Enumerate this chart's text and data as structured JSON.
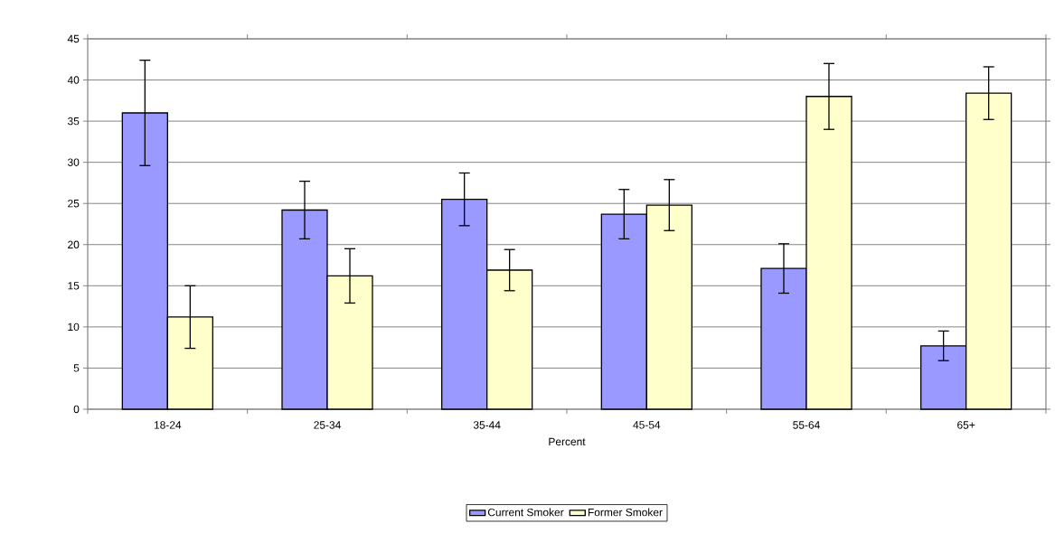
{
  "chart_data": {
    "type": "bar",
    "xlabel": "Percent",
    "categories": [
      "18-24",
      "25-34",
      "35-44",
      "45-54",
      "55-64",
      "65+"
    ],
    "series": [
      {
        "name": "Current Smoker",
        "color": "#9999ff",
        "values": [
          36.0,
          24.2,
          25.5,
          23.7,
          17.1,
          7.7
        ],
        "errors": [
          6.4,
          3.5,
          3.2,
          3.0,
          3.0,
          1.8
        ]
      },
      {
        "name": "Former Smoker",
        "color": "#ffffcc",
        "values": [
          11.2,
          16.2,
          16.9,
          24.8,
          38.0,
          38.4
        ],
        "errors": [
          3.8,
          3.3,
          2.5,
          3.1,
          4.0,
          3.2
        ]
      }
    ],
    "ylim": [
      0,
      45
    ],
    "yticks": [
      0,
      5,
      10,
      15,
      20,
      25,
      30,
      35,
      40,
      45
    ],
    "grid": "y",
    "legend": "bottom"
  }
}
